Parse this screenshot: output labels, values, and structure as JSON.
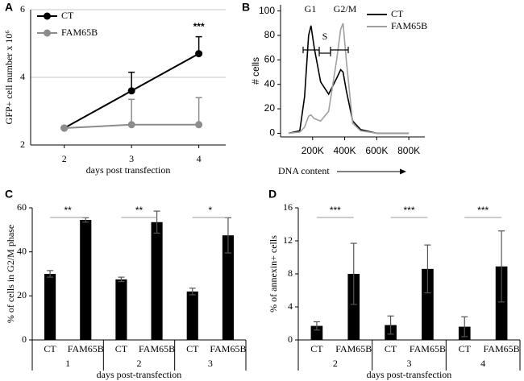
{
  "chart_data": [
    {
      "type": "line",
      "panel_label": "A",
      "x": [
        2,
        3,
        4
      ],
      "xlim": [
        1.5,
        4.4
      ],
      "xticks": [
        2,
        3,
        4
      ],
      "ylim": [
        2,
        6
      ],
      "yticks": [
        2,
        4,
        6
      ],
      "grid": true,
      "markers": true,
      "legend": "top-left",
      "xlabel": "days post transfection",
      "ylabel": "GFP+ cell number x 10⁶",
      "series": [
        {
          "name": "CT",
          "color": "#000000",
          "values": [
            2.5,
            3.6,
            4.7
          ],
          "errors": [
            null,
            0.55,
            0.5
          ]
        },
        {
          "name": "FAM65B",
          "color": "#8c8c8c",
          "values": [
            2.5,
            2.6,
            2.6
          ],
          "errors": [
            null,
            0.75,
            0.8
          ]
        }
      ],
      "significance": [
        null,
        null,
        "***"
      ]
    },
    {
      "type": "line",
      "panel_label": "B",
      "x": [
        50000,
        120000,
        150000,
        175000,
        190000,
        210000,
        250000,
        300000,
        350000,
        375000,
        390000,
        410000,
        450000,
        500000,
        600000,
        800000
      ],
      "xlim": [
        0,
        900000
      ],
      "xticks": [
        {
          "value": 200000,
          "label": "200K"
        },
        {
          "value": 400000,
          "label": "400K"
        },
        {
          "value": 600000,
          "label": "600K"
        },
        {
          "value": 800000,
          "label": "800K"
        }
      ],
      "ylim": [
        -3,
        105
      ],
      "yticks": [
        0,
        20,
        40,
        60,
        80,
        100
      ],
      "grid": false,
      "markers": false,
      "legend": "top-right",
      "xlabel": "DNA content",
      "ylabel": "# cells",
      "gate_labels": [
        "G1",
        "S",
        "G2/M"
      ],
      "series": [
        {
          "name": "CT",
          "color": "#000000",
          "values": [
            0,
            2,
            30,
            80,
            88,
            70,
            42,
            32,
            45,
            52,
            50,
            35,
            10,
            3,
            0,
            0
          ]
        },
        {
          "name": "FAM65B",
          "color": "#a0a0a0",
          "values": [
            0,
            1,
            5,
            14,
            15,
            12,
            10,
            18,
            60,
            85,
            90,
            60,
            8,
            2,
            0,
            0
          ]
        }
      ]
    },
    {
      "type": "bar",
      "panel_label": "C",
      "categories": [
        "1",
        "2",
        "3"
      ],
      "ylim": [
        0,
        60
      ],
      "yticks": [
        0,
        20,
        40,
        60
      ],
      "xlabel": "days post-transfection",
      "ylabel": "% of cells in G2/M phase",
      "series": [
        {
          "name": "CT",
          "color": "#000000",
          "values": [
            30,
            27.5,
            22
          ],
          "errors": [
            1.5,
            1,
            1.5
          ]
        },
        {
          "name": "FAM65B",
          "color": "#000000",
          "values": [
            54.5,
            53.5,
            47.5
          ],
          "errors": [
            1,
            5,
            8
          ]
        }
      ],
      "significance": [
        "**",
        "**",
        "*"
      ]
    },
    {
      "type": "bar",
      "panel_label": "D",
      "categories": [
        "2",
        "3",
        "4"
      ],
      "ylim": [
        0,
        16
      ],
      "yticks": [
        0,
        4,
        8,
        12,
        16
      ],
      "xlabel": "days post-transfection",
      "ylabel": "% of annexin+ cells",
      "series": [
        {
          "name": "CT",
          "color": "#000000",
          "values": [
            1.7,
            1.8,
            1.6
          ],
          "errors": [
            0.5,
            1.1,
            1.2
          ]
        },
        {
          "name": "FAM65B",
          "color": "#000000",
          "values": [
            8,
            8.6,
            8.9
          ],
          "errors": [
            3.7,
            2.9,
            4.3
          ]
        }
      ],
      "significance": [
        "***",
        "***",
        "***"
      ]
    }
  ]
}
